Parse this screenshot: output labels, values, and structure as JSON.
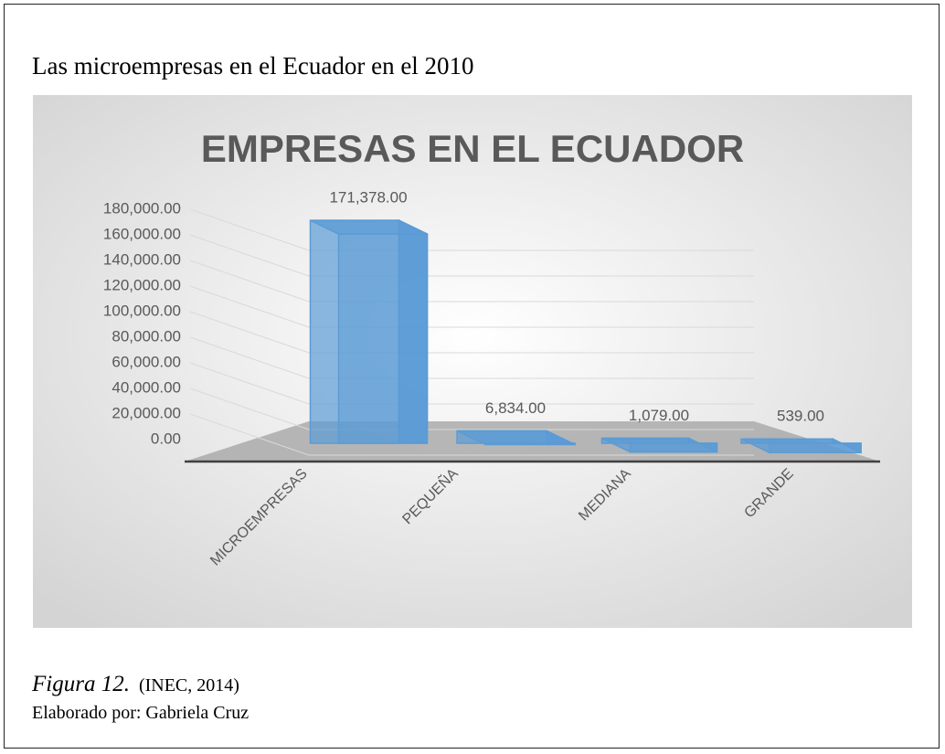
{
  "caption_title": "Las  microempresas en el Ecuador en el 2010",
  "chart_data": {
    "type": "bar",
    "title": "EMPRESAS EN EL ECUADOR",
    "categories": [
      "MICROEMPRESAS",
      "PEQUEÑA",
      "MEDIANA",
      "GRANDE"
    ],
    "values": [
      171378,
      6834,
      1079,
      539
    ],
    "value_labels": [
      "171,378.00",
      "6,834.00",
      "1,079.00",
      "539.00"
    ],
    "color": "#5b9bd5",
    "ylim": [
      0,
      180000
    ],
    "yticks": [
      {
        "value": 0,
        "label": "0.00"
      },
      {
        "value": 20000,
        "label": "20,000.00"
      },
      {
        "value": 40000,
        "label": "40,000.00"
      },
      {
        "value": 60000,
        "label": "60,000.00"
      },
      {
        "value": 80000,
        "label": "80,000.00"
      },
      {
        "value": 100000,
        "label": "100,000.00"
      },
      {
        "value": 120000,
        "label": "120,000.00"
      },
      {
        "value": 140000,
        "label": "140,000.00"
      },
      {
        "value": 160000,
        "label": "160,000.00"
      },
      {
        "value": 180000,
        "label": "180,000.00"
      }
    ],
    "grid": true
  },
  "figure_label": "Figura 12.",
  "source": "(INEC, 2014)",
  "author": "Elaborado por: Gabriela Cruz"
}
